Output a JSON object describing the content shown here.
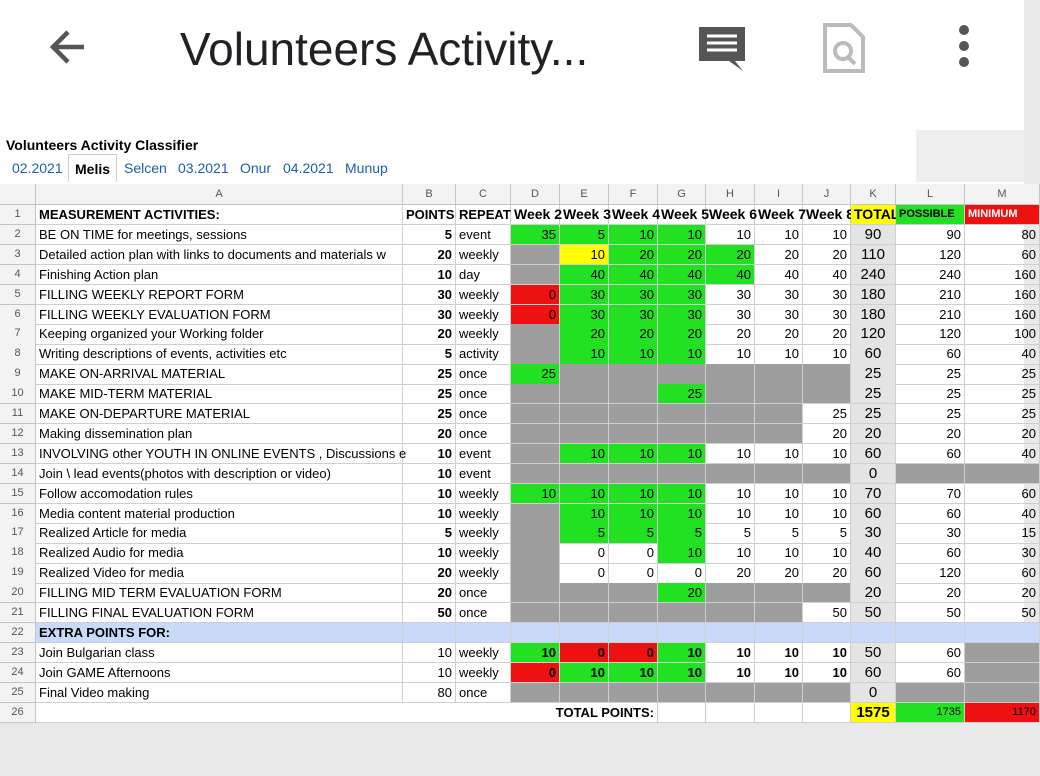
{
  "app_bar": {
    "title": "Volunteers Activity..."
  },
  "sheet": {
    "title": "Volunteers Activity Classifier",
    "tabs": [
      "02.2021",
      "Melis",
      "Selcen",
      "03.2021",
      "Onur",
      "04.2021",
      "Munup"
    ],
    "active_tab": 1,
    "columns": [
      "A",
      "B",
      "C",
      "D",
      "E",
      "F",
      "G",
      "H",
      "I",
      "J",
      "K",
      "L",
      "M"
    ],
    "row_numbers": [
      1,
      2,
      3,
      4,
      5,
      6,
      7,
      8,
      9,
      10,
      11,
      12,
      13,
      14,
      15,
      16,
      17,
      18,
      19,
      20,
      21,
      22,
      23,
      24,
      25,
      26
    ],
    "rows": [
      {
        "cells": [
          "MEASUREMENT ACTIVITIES:",
          "POINTS",
          "REPEAT",
          "Week 2",
          "Week 3",
          "Week 4",
          "Week 5",
          "Week 6",
          "Week 7",
          "Week 8",
          "TOTAL",
          "POSSIBLE",
          "MINIMUM"
        ],
        "fills": [
          null,
          null,
          null,
          null,
          null,
          null,
          null,
          null,
          null,
          null,
          "#ffff00",
          "#22e022",
          "#ee1111"
        ]
      },
      {
        "cells": [
          "BE ON TIME for meetings, sessions",
          5,
          "event",
          35,
          5,
          10,
          10,
          10,
          10,
          10,
          90,
          90,
          80
        ],
        "fills": [
          null,
          null,
          null,
          "#22e022",
          "#22e022",
          "#22e022",
          "#22e022",
          null,
          null,
          null,
          "#e4e4e4",
          null,
          null
        ]
      },
      {
        "cells": [
          "Detailed action plan with links to documents and materials w",
          20,
          "weekly",
          null,
          10,
          20,
          20,
          20,
          20,
          20,
          110,
          120,
          60
        ],
        "fills": [
          null,
          null,
          null,
          "#9e9e9e",
          "#ffff00",
          "#22e022",
          "#22e022",
          "#22e022",
          null,
          null,
          "#e4e4e4",
          null,
          null
        ]
      },
      {
        "cells": [
          "Finishing Action plan",
          10,
          "day",
          null,
          40,
          40,
          40,
          40,
          40,
          40,
          240,
          240,
          160
        ],
        "fills": [
          null,
          null,
          null,
          "#9e9e9e",
          "#22e022",
          "#22e022",
          "#22e022",
          "#22e022",
          null,
          null,
          "#e4e4e4",
          null,
          null
        ]
      },
      {
        "cells": [
          "FILLING WEEKLY REPORT FORM",
          30,
          "weekly",
          0,
          30,
          30,
          30,
          30,
          30,
          30,
          180,
          210,
          160
        ],
        "fills": [
          null,
          null,
          null,
          "#ee1111",
          "#22e022",
          "#22e022",
          "#22e022",
          null,
          null,
          null,
          "#e4e4e4",
          null,
          null
        ]
      },
      {
        "cells": [
          "FILLING WEEKLY EVALUATION FORM",
          30,
          "weekly",
          0,
          30,
          30,
          30,
          30,
          30,
          30,
          180,
          210,
          160
        ],
        "fills": [
          null,
          null,
          null,
          "#ee1111",
          "#22e022",
          "#22e022",
          "#22e022",
          null,
          null,
          null,
          "#e4e4e4",
          null,
          null
        ]
      },
      {
        "cells": [
          "Keeping organized your Working folder",
          20,
          "weekly",
          null,
          20,
          20,
          20,
          20,
          20,
          20,
          120,
          120,
          100
        ],
        "fills": [
          null,
          null,
          null,
          "#9e9e9e",
          "#22e022",
          "#22e022",
          "#22e022",
          null,
          null,
          null,
          "#e4e4e4",
          null,
          null
        ]
      },
      {
        "cells": [
          "Writing descriptions of events, activities etc",
          5,
          "activity",
          null,
          10,
          10,
          10,
          10,
          10,
          10,
          60,
          60,
          40
        ],
        "fills": [
          null,
          null,
          null,
          "#9e9e9e",
          "#22e022",
          "#22e022",
          "#22e022",
          null,
          null,
          null,
          "#e4e4e4",
          null,
          null
        ]
      },
      {
        "cells": [
          "MAKE ON-ARRIVAL MATERIAL",
          25,
          "once",
          25,
          null,
          null,
          null,
          null,
          null,
          null,
          25,
          25,
          25
        ],
        "fills": [
          null,
          null,
          null,
          "#22e022",
          "#9e9e9e",
          "#9e9e9e",
          "#9e9e9e",
          "#9e9e9e",
          "#9e9e9e",
          "#9e9e9e",
          "#e4e4e4",
          null,
          null
        ]
      },
      {
        "cells": [
          "MAKE MID-TERM MATERIAL",
          25,
          "once",
          null,
          null,
          null,
          25,
          null,
          null,
          null,
          25,
          25,
          25
        ],
        "fills": [
          null,
          null,
          null,
          "#9e9e9e",
          "#9e9e9e",
          "#9e9e9e",
          "#22e022",
          "#9e9e9e",
          "#9e9e9e",
          "#9e9e9e",
          "#e4e4e4",
          null,
          null
        ]
      },
      {
        "cells": [
          "MAKE ON-DEPARTURE MATERIAL",
          25,
          "once",
          null,
          null,
          null,
          null,
          null,
          null,
          25,
          25,
          25,
          25
        ],
        "fills": [
          null,
          null,
          null,
          "#9e9e9e",
          "#9e9e9e",
          "#9e9e9e",
          "#9e9e9e",
          "#9e9e9e",
          "#9e9e9e",
          null,
          "#e4e4e4",
          null,
          null
        ]
      },
      {
        "cells": [
          "Making dissemination plan",
          20,
          "once",
          null,
          null,
          null,
          null,
          null,
          null,
          20,
          20,
          20,
          20
        ],
        "fills": [
          null,
          null,
          null,
          "#9e9e9e",
          "#9e9e9e",
          "#9e9e9e",
          "#9e9e9e",
          "#9e9e9e",
          "#9e9e9e",
          null,
          "#e4e4e4",
          null,
          null
        ]
      },
      {
        "cells": [
          "INVOLVING other YOUTH IN ONLINE EVENTS , Discussions e",
          10,
          "event",
          null,
          10,
          10,
          10,
          10,
          10,
          10,
          60,
          60,
          40
        ],
        "fills": [
          null,
          null,
          null,
          "#9e9e9e",
          "#22e022",
          "#22e022",
          "#22e022",
          null,
          null,
          null,
          "#e4e4e4",
          null,
          null
        ]
      },
      {
        "cells": [
          "Join \\ lead events(photos with description or video)",
          10,
          "event",
          null,
          null,
          null,
          null,
          null,
          null,
          null,
          0,
          null,
          null
        ],
        "fills": [
          null,
          null,
          null,
          "#9e9e9e",
          "#9e9e9e",
          "#9e9e9e",
          "#9e9e9e",
          "#9e9e9e",
          "#9e9e9e",
          "#9e9e9e",
          "#e4e4e4",
          "#9e9e9e",
          "#9e9e9e"
        ]
      },
      {
        "cells": [
          "Follow accomodation rules",
          10,
          "weekly",
          10,
          10,
          10,
          10,
          10,
          10,
          10,
          70,
          70,
          60
        ],
        "fills": [
          null,
          null,
          null,
          "#22e022",
          "#22e022",
          "#22e022",
          "#22e022",
          null,
          null,
          null,
          "#e4e4e4",
          null,
          null
        ]
      },
      {
        "cells": [
          "Media content material production",
          10,
          "weekly",
          null,
          10,
          10,
          10,
          10,
          10,
          10,
          60,
          60,
          40
        ],
        "fills": [
          null,
          null,
          null,
          "#9e9e9e",
          "#22e022",
          "#22e022",
          "#22e022",
          null,
          null,
          null,
          "#e4e4e4",
          null,
          null
        ]
      },
      {
        "cells": [
          "Realized Article for media",
          5,
          "weekly",
          null,
          5,
          5,
          5,
          5,
          5,
          5,
          30,
          30,
          15
        ],
        "fills": [
          null,
          null,
          null,
          "#9e9e9e",
          "#22e022",
          "#22e022",
          "#22e022",
          null,
          null,
          null,
          "#e4e4e4",
          null,
          null
        ]
      },
      {
        "cells": [
          "Realized Audio for media",
          10,
          "weekly",
          null,
          0,
          0,
          10,
          10,
          10,
          10,
          40,
          60,
          30
        ],
        "fills": [
          null,
          null,
          null,
          "#9e9e9e",
          null,
          null,
          "#22e022",
          null,
          null,
          null,
          "#e4e4e4",
          null,
          null
        ]
      },
      {
        "cells": [
          "Realized Video for media",
          20,
          "weekly",
          null,
          0,
          0,
          0,
          20,
          20,
          20,
          60,
          120,
          60
        ],
        "fills": [
          null,
          null,
          null,
          "#9e9e9e",
          null,
          null,
          null,
          null,
          null,
          null,
          "#e4e4e4",
          null,
          null
        ]
      },
      {
        "cells": [
          "FILLING MID TERM EVALUATION FORM",
          20,
          "once",
          null,
          null,
          null,
          20,
          null,
          null,
          null,
          20,
          20,
          20
        ],
        "fills": [
          null,
          null,
          null,
          "#9e9e9e",
          "#9e9e9e",
          "#9e9e9e",
          "#22e022",
          "#9e9e9e",
          "#9e9e9e",
          "#9e9e9e",
          "#e4e4e4",
          null,
          null
        ]
      },
      {
        "cells": [
          "FILLING FINAL EVALUATION FORM",
          50,
          "once",
          null,
          null,
          null,
          null,
          null,
          null,
          50,
          50,
          50,
          50
        ],
        "fills": [
          null,
          null,
          null,
          "#9e9e9e",
          "#9e9e9e",
          "#9e9e9e",
          "#9e9e9e",
          "#9e9e9e",
          "#9e9e9e",
          null,
          "#e4e4e4",
          null,
          null
        ]
      },
      {
        "cells": [
          "EXTRA POINTS FOR:",
          null,
          null,
          null,
          null,
          null,
          null,
          null,
          null,
          null,
          null,
          null,
          null
        ],
        "fills": [
          "#c9daf8",
          "#c9daf8",
          "#c9daf8",
          "#c9daf8",
          "#c9daf8",
          "#c9daf8",
          "#c9daf8",
          "#c9daf8",
          "#c9daf8",
          "#c9daf8",
          "#c9daf8",
          "#c9daf8",
          "#c9daf8"
        ]
      },
      {
        "cells": [
          "Join Bulgarian class",
          10,
          "weekly",
          10,
          0,
          0,
          10,
          10,
          10,
          10,
          50,
          60,
          null
        ],
        "fills": [
          null,
          null,
          null,
          "#22e022",
          "#ee1111",
          "#ee1111",
          "#22e022",
          null,
          null,
          null,
          "#e4e4e4",
          null,
          "#9e9e9e"
        ]
      },
      {
        "cells": [
          "Join GAME Afternoons",
          10,
          "weekly",
          0,
          10,
          10,
          10,
          10,
          10,
          10,
          60,
          60,
          null
        ],
        "fills": [
          null,
          null,
          null,
          "#ee1111",
          "#22e022",
          "#22e022",
          "#22e022",
          null,
          null,
          null,
          "#e4e4e4",
          null,
          "#9e9e9e"
        ]
      },
      {
        "cells": [
          "Final Video making",
          80,
          "once",
          null,
          null,
          null,
          null,
          null,
          null,
          null,
          0,
          null,
          null
        ],
        "fills": [
          null,
          null,
          null,
          "#9e9e9e",
          "#9e9e9e",
          "#9e9e9e",
          "#9e9e9e",
          "#9e9e9e",
          "#9e9e9e",
          "#9e9e9e",
          "#e4e4e4",
          "#9e9e9e",
          "#9e9e9e"
        ]
      },
      {
        "cells": [
          "TOTAL POINTS:",
          null,
          null,
          null,
          null,
          null,
          null,
          null,
          null,
          null,
          1575,
          1735,
          1170
        ],
        "fills": [
          null,
          null,
          null,
          null,
          null,
          null,
          null,
          null,
          null,
          null,
          "#ffff00",
          "#22e022",
          "#ee1111"
        ]
      }
    ]
  }
}
